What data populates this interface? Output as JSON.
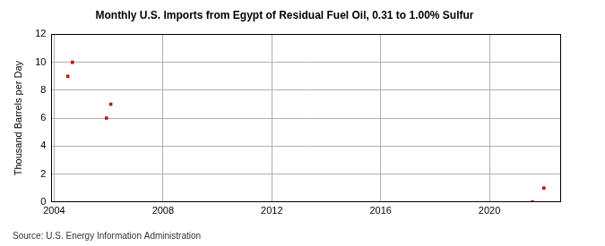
{
  "chart_data": {
    "type": "scatter",
    "title": "Monthly U.S. Imports from Egypt of Residual Fuel Oil, 0.31 to 1.00% Sulfur",
    "y_label": "Thousand Barrels per Day",
    "source": "Source: U.S. Energy Information Administration",
    "x": [
      2004.5,
      2004.67,
      2005.92,
      2006.08,
      2021.58,
      2022.0
    ],
    "values": [
      9,
      10,
      6,
      7,
      0,
      1
    ],
    "color": "#cc0000",
    "marker": "square",
    "xlim": [
      2003.9,
      2022.6
    ],
    "xticks": [
      2004,
      2008,
      2012,
      2016,
      2020
    ],
    "ylim": [
      0,
      12
    ],
    "yticks": [
      0,
      2,
      4,
      6,
      8,
      10,
      12
    ],
    "grid": true
  }
}
